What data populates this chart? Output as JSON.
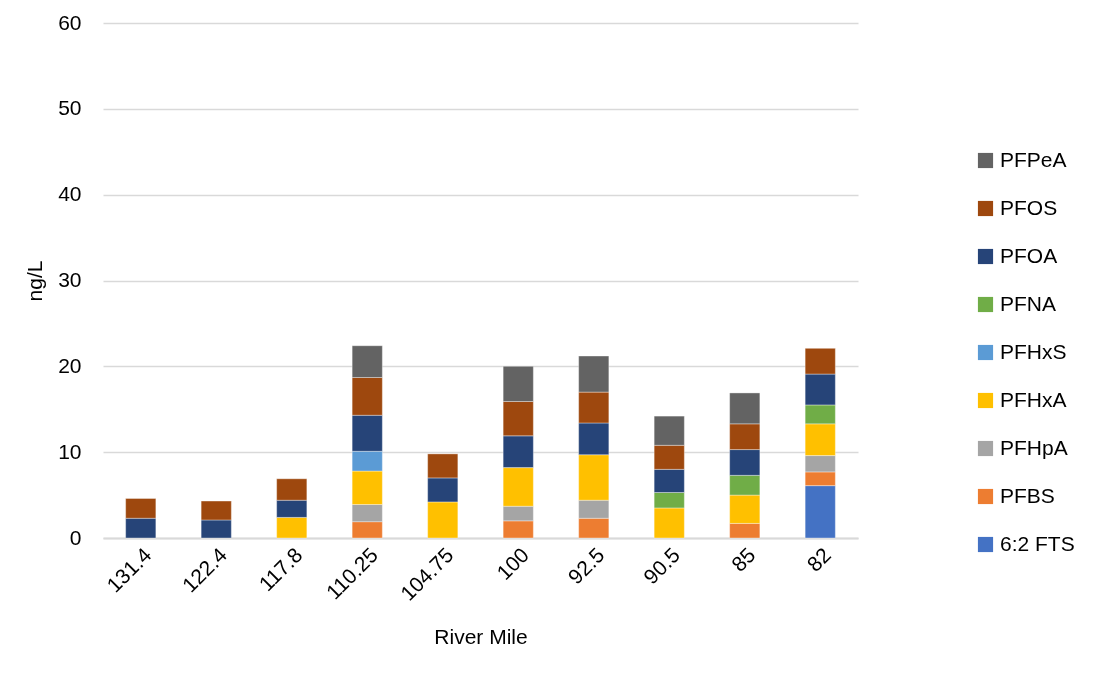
{
  "chart_data": {
    "type": "bar",
    "stacked": true,
    "xlabel": "River Mile",
    "ylabel": "ng/L",
    "categories": [
      "131.4",
      "122.4",
      "117.8",
      "110.25",
      "104.75",
      "100",
      "92.5",
      "90.5",
      "85",
      "82"
    ],
    "series": [
      {
        "name": "6:2 FTS",
        "color": "#4472c4",
        "values": [
          null,
          null,
          null,
          null,
          null,
          null,
          null,
          null,
          null,
          6.1
        ]
      },
      {
        "name": "PFBS",
        "color": "#ed7d31",
        "values": [
          null,
          null,
          null,
          1.9,
          null,
          2.0,
          2.3,
          null,
          1.7,
          1.6
        ]
      },
      {
        "name": "PFHpA",
        "color": "#a5a5a5",
        "values": [
          null,
          null,
          null,
          2.0,
          null,
          1.7,
          2.1,
          null,
          null,
          1.9
        ]
      },
      {
        "name": "PFHxA",
        "color": "#ffc000",
        "values": [
          null,
          null,
          2.4,
          3.9,
          4.2,
          4.5,
          5.3,
          3.5,
          3.3,
          3.7
        ]
      },
      {
        "name": "PFHxS",
        "color": "#5b9bd5",
        "values": [
          null,
          null,
          null,
          2.3,
          null,
          null,
          null,
          null,
          null,
          null
        ]
      },
      {
        "name": "PFNA",
        "color": "#70ad47",
        "values": [
          null,
          null,
          null,
          null,
          null,
          null,
          null,
          1.8,
          2.3,
          2.2
        ]
      },
      {
        "name": "PFOA",
        "color": "#264478",
        "values": [
          2.3,
          2.1,
          2.0,
          4.2,
          2.8,
          3.7,
          3.7,
          2.7,
          3.0,
          3.6
        ]
      },
      {
        "name": "PFOS",
        "color": "#9e480e",
        "values": [
          2.3,
          2.2,
          2.5,
          4.4,
          2.8,
          4.0,
          3.6,
          2.8,
          3.0,
          3.0
        ]
      },
      {
        "name": "PFPeA",
        "color": "#636363",
        "values": [
          null,
          null,
          null,
          3.7,
          null,
          4.1,
          4.2,
          3.4,
          3.6,
          null
        ]
      }
    ],
    "ylim": [
      0,
      60
    ],
    "yticks": [
      0,
      10,
      20,
      30,
      40,
      50,
      60
    ],
    "grid": "y",
    "legend": "right"
  }
}
